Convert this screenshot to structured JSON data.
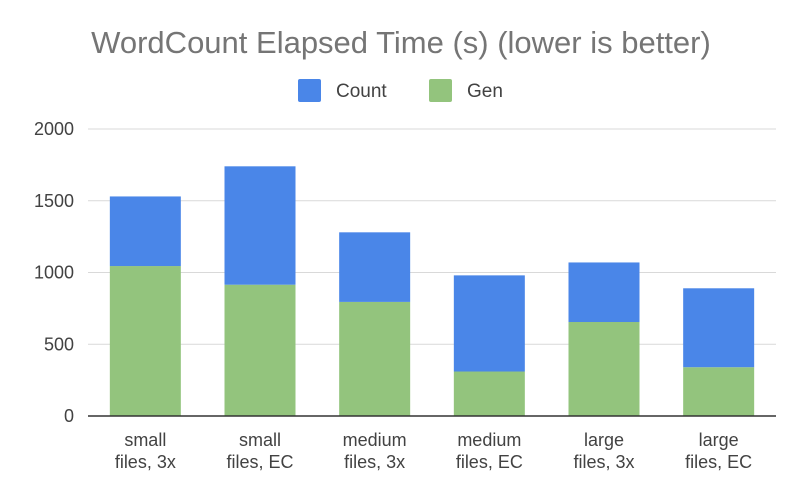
{
  "chart_data": {
    "type": "bar",
    "stacked": true,
    "title": "WordCount Elapsed Time (s) (lower is better)",
    "xlabel": "",
    "ylabel": "",
    "ylim": [
      0,
      2000
    ],
    "yticks": [
      0,
      500,
      1000,
      1500,
      2000
    ],
    "grid": true,
    "legend_position": "top",
    "categories": [
      [
        "small",
        "files, 3x"
      ],
      [
        "small",
        "files, EC"
      ],
      [
        "medium",
        "files, 3x"
      ],
      [
        "medium",
        "files, EC"
      ],
      [
        "large",
        "files, 3x"
      ],
      [
        "large",
        "files, EC"
      ]
    ],
    "series": [
      {
        "name": "Gen",
        "color": "#93c47d",
        "values": [
          1045,
          915,
          795,
          310,
          655,
          340
        ]
      },
      {
        "name": "Count",
        "color": "#4a86e8",
        "values": [
          485,
          825,
          485,
          670,
          415,
          550
        ]
      }
    ]
  },
  "legend": [
    {
      "label": "Count",
      "color": "#4a86e8"
    },
    {
      "label": "Gen",
      "color": "#93c47d"
    }
  ]
}
